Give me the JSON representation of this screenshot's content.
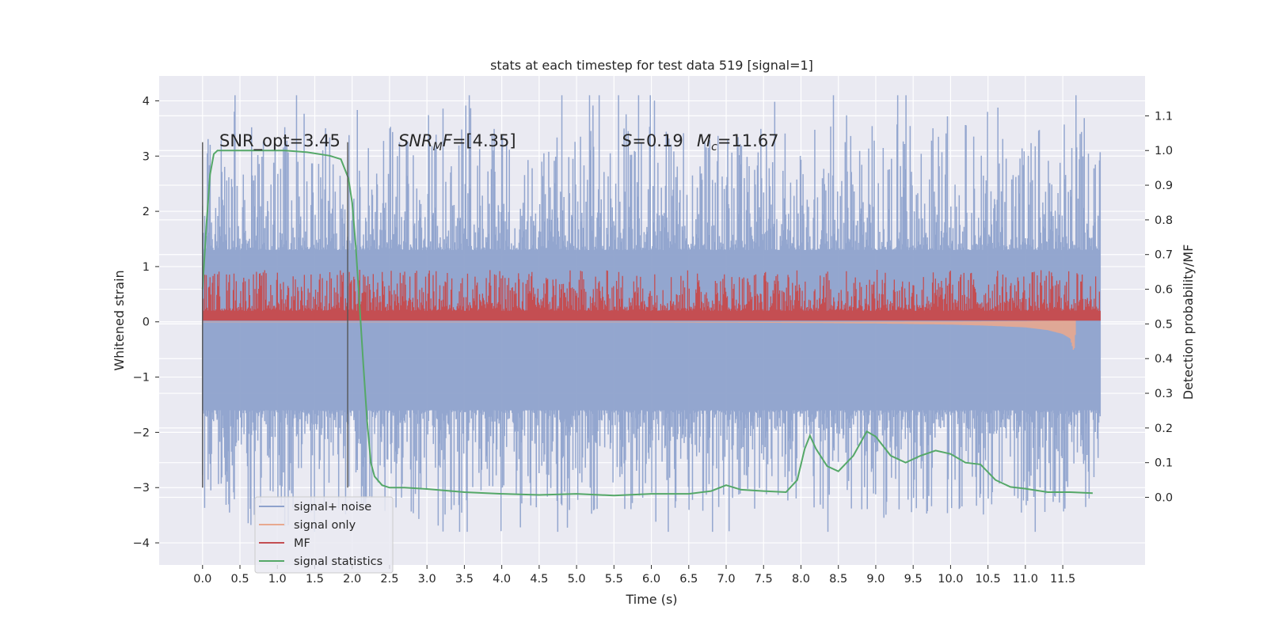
{
  "chart_data": {
    "type": "line",
    "title": "stats at each timestep for test data 519 [signal=1]",
    "xlabel": "Time (s)",
    "ylabel_left": "Whitened strain",
    "ylabel_right": "Detection probability/MF",
    "x_ticks": [
      "0.0",
      "0.5",
      "1.0",
      "1.5",
      "2.0",
      "2.5",
      "3.0",
      "3.5",
      "4.0",
      "4.5",
      "5.0",
      "5.5",
      "6.0",
      "6.5",
      "7.0",
      "7.5",
      "8.0",
      "8.5",
      "9.0",
      "9.5",
      "10.0",
      "10.5",
      "11.0",
      "11.5"
    ],
    "y_left_ticks": [
      "4",
      "3",
      "2",
      "1",
      "0",
      "−1",
      "−2",
      "−3",
      "−4"
    ],
    "y_right_ticks": [
      "1.1",
      "1.0",
      "0.9",
      "0.8",
      "0.7",
      "0.6",
      "0.5",
      "0.4",
      "0.3",
      "0.2",
      "0.1",
      "0.0"
    ],
    "xlim": [
      -0.58,
      12.6
    ],
    "ylim_left": [
      -4.4,
      4.45
    ],
    "ylim_right": [
      -0.195,
      1.215
    ],
    "grid": true,
    "legend_position": "lower-left",
    "annotations": {
      "snr_opt": "SNR_opt=3.45",
      "snr_mf_sym": "SNR",
      "snr_mf_sub": "M",
      "snr_mf_sym2": "F",
      "snr_mf_value": "=[4.35]",
      "s_sym": "S",
      "s_value": "=0.19",
      "mc_sym": "M",
      "mc_sub": "c",
      "mc_value": "=11.67"
    },
    "vertical_markers": [
      0.0,
      1.94
    ],
    "series": [
      {
        "name": "signal+ noise",
        "color": "#8ea2cc",
        "axis": "left",
        "style": "noise",
        "x_range": [
          0.0,
          12.0
        ],
        "envelope_upper": 1.3,
        "envelope_lower": -1.6,
        "spike_max": 4.1,
        "spike_min": -3.8
      },
      {
        "name": "signal only",
        "color": "#e8a98f",
        "axis": "left",
        "style": "chirp",
        "x": [
          0.0,
          6.0,
          8.0,
          9.0,
          10.0,
          10.5,
          11.0,
          11.3,
          11.5,
          11.6,
          11.65,
          11.68
        ],
        "amplitude": [
          0.01,
          0.01,
          0.02,
          0.03,
          0.05,
          0.07,
          0.1,
          0.15,
          0.22,
          0.3,
          0.55,
          0.0
        ]
      },
      {
        "name": "MF",
        "color": "#c44e52",
        "axis": "left",
        "style": "mf",
        "x_range": [
          0.0,
          12.0
        ],
        "baseline": 0.3,
        "spike_max": 1.0
      },
      {
        "name": "signal statistics",
        "color": "#55a868",
        "axis": "right",
        "style": "line",
        "x": [
          0.0,
          0.05,
          0.1,
          0.15,
          0.2,
          0.3,
          0.5,
          0.8,
          1.1,
          1.4,
          1.7,
          1.85,
          1.95,
          2.0,
          2.05,
          2.1,
          2.15,
          2.2,
          2.25,
          2.3,
          2.4,
          2.5,
          2.7,
          3.0,
          3.5,
          4.0,
          4.5,
          5.0,
          5.5,
          6.0,
          6.5,
          6.8,
          7.0,
          7.2,
          7.5,
          7.8,
          7.95,
          8.05,
          8.12,
          8.2,
          8.35,
          8.5,
          8.7,
          8.88,
          9.0,
          9.2,
          9.4,
          9.6,
          9.8,
          10.0,
          10.2,
          10.4,
          10.6,
          10.8,
          11.0,
          11.3,
          11.6,
          11.9
        ],
        "y": [
          0.6,
          0.78,
          0.93,
          0.99,
          1.0,
          1.0,
          1.0,
          1.0,
          1.0,
          0.995,
          0.985,
          0.975,
          0.92,
          0.85,
          0.72,
          0.55,
          0.38,
          0.22,
          0.1,
          0.06,
          0.035,
          0.028,
          0.028,
          0.024,
          0.015,
          0.01,
          0.007,
          0.01,
          0.005,
          0.01,
          0.01,
          0.018,
          0.035,
          0.022,
          0.018,
          0.015,
          0.05,
          0.14,
          0.178,
          0.14,
          0.09,
          0.075,
          0.12,
          0.19,
          0.175,
          0.12,
          0.1,
          0.12,
          0.135,
          0.125,
          0.1,
          0.095,
          0.05,
          0.03,
          0.025,
          0.015,
          0.015,
          0.012
        ]
      }
    ]
  }
}
